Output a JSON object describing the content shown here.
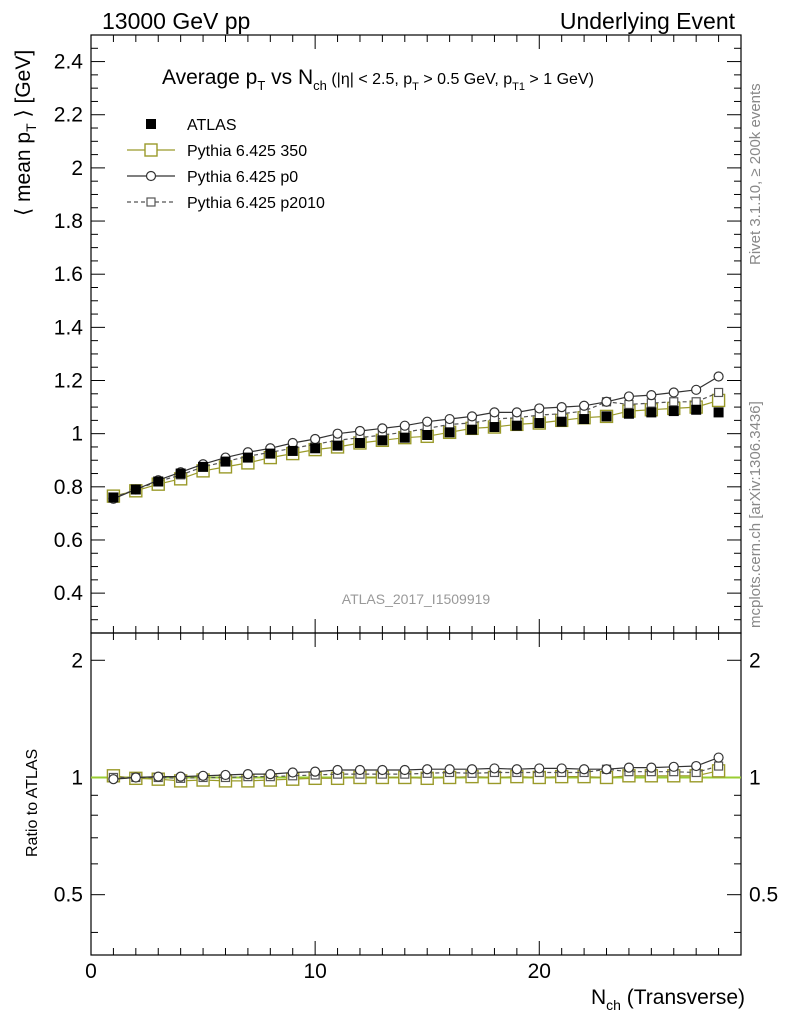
{
  "header": {
    "left": "13000 GeV pp",
    "right": "Underlying Event"
  },
  "side_labels": {
    "rivet": "Rivet 3.1.10, ≥ 200k events",
    "mcplots": "mcplots.cern.ch [arXiv:1306.3436]"
  },
  "watermark": "ATLAS_2017_I1509919",
  "chart_data": [
    {
      "type": "scatter",
      "title": "Average p_T vs N_ch (|η| < 2.5, p_T > 0.5 GeV, p_T1 > 1 GeV)",
      "ylabel": "⟨ mean p_T ⟩ [GeV]",
      "xlabel": "N_ch (Transverse)",
      "xlim": [
        0,
        29
      ],
      "ylim": [
        0.25,
        2.5
      ],
      "xticks": [
        "0",
        "10",
        "20"
      ],
      "yticks": [
        "0.4",
        "0.6",
        "0.8",
        "1",
        "1.2",
        "1.4",
        "1.6",
        "1.8",
        "2",
        "2.2",
        "2.4"
      ],
      "legend_position": "top-left",
      "x": [
        1,
        2,
        3,
        4,
        5,
        6,
        7,
        8,
        9,
        10,
        11,
        12,
        13,
        14,
        15,
        16,
        17,
        18,
        19,
        20,
        21,
        22,
        23,
        24,
        25,
        26,
        27,
        28
      ],
      "series": [
        {
          "name": "ATLAS",
          "color": "#000000",
          "marker": "filled-square",
          "values": [
            0.76,
            0.79,
            0.82,
            0.85,
            0.875,
            0.895,
            0.91,
            0.925,
            0.935,
            0.945,
            0.955,
            0.965,
            0.975,
            0.985,
            0.995,
            1.005,
            1.015,
            1.025,
            1.03,
            1.04,
            1.045,
            1.055,
            1.065,
            1.075,
            1.08,
            1.085,
            1.09,
            1.08
          ]
        },
        {
          "name": "Pythia 6.425 350",
          "color": "#9a9a2a",
          "marker": "open-square-solid",
          "values": [
            0.765,
            0.785,
            0.81,
            0.83,
            0.86,
            0.875,
            0.89,
            0.91,
            0.925,
            0.94,
            0.95,
            0.965,
            0.975,
            0.985,
            0.99,
            1.005,
            1.02,
            1.025,
            1.035,
            1.04,
            1.05,
            1.06,
            1.065,
            1.085,
            1.09,
            1.095,
            1.1,
            1.125
          ]
        },
        {
          "name": "Pythia 6.425 p0",
          "color": "#333333",
          "marker": "open-circle-solid",
          "values": [
            0.755,
            0.79,
            0.825,
            0.855,
            0.885,
            0.91,
            0.93,
            0.945,
            0.965,
            0.98,
            1.0,
            1.01,
            1.02,
            1.03,
            1.045,
            1.055,
            1.065,
            1.08,
            1.08,
            1.095,
            1.1,
            1.105,
            1.12,
            1.14,
            1.145,
            1.155,
            1.165,
            1.215
          ]
        },
        {
          "name": "Pythia 6.425 p2010",
          "color": "#555555",
          "marker": "open-square-dashed",
          "values": [
            0.76,
            0.79,
            0.82,
            0.845,
            0.875,
            0.895,
            0.915,
            0.93,
            0.945,
            0.96,
            0.975,
            0.985,
            0.995,
            1.005,
            1.02,
            1.035,
            1.04,
            1.055,
            1.06,
            1.07,
            1.075,
            1.085,
            1.12,
            1.11,
            1.115,
            1.12,
            1.12,
            1.155
          ]
        }
      ]
    },
    {
      "type": "scatter",
      "title": "",
      "ylabel": "Ratio to ATLAS",
      "xlabel": "N_ch (Transverse)",
      "xlim": [
        0,
        29
      ],
      "ylim": [
        0.35,
        2.35
      ],
      "yscale": "log",
      "yticks": [
        "0.5",
        "1",
        "2"
      ],
      "reference_line": 1,
      "x": [
        1,
        2,
        3,
        4,
        5,
        6,
        7,
        8,
        9,
        10,
        11,
        12,
        13,
        14,
        15,
        16,
        17,
        18,
        19,
        20,
        21,
        22,
        23,
        24,
        25,
        26,
        27,
        28
      ],
      "series": [
        {
          "name": "Pythia 6.425 350",
          "color": "#9a9a2a",
          "marker": "open-square-solid",
          "values": [
            1.01,
            0.995,
            0.99,
            0.98,
            0.985,
            0.98,
            0.98,
            0.985,
            0.99,
            0.995,
            0.995,
            1.0,
            1.0,
            1.0,
            0.995,
            1.0,
            1.005,
            1.0,
            1.005,
            1.0,
            1.005,
            1.005,
            1.0,
            1.01,
            1.01,
            1.01,
            1.01,
            1.04
          ]
        },
        {
          "name": "Pythia 6.425 p0",
          "color": "#333333",
          "marker": "open-circle-solid",
          "values": [
            0.99,
            1.0,
            1.005,
            1.005,
            1.01,
            1.015,
            1.02,
            1.02,
            1.03,
            1.035,
            1.045,
            1.045,
            1.045,
            1.045,
            1.05,
            1.05,
            1.05,
            1.055,
            1.05,
            1.055,
            1.055,
            1.05,
            1.05,
            1.06,
            1.06,
            1.065,
            1.07,
            1.125
          ]
        },
        {
          "name": "Pythia 6.425 p2010",
          "color": "#555555",
          "marker": "open-square-dashed",
          "values": [
            1.0,
            1.0,
            1.0,
            0.995,
            1.0,
            1.0,
            1.005,
            1.005,
            1.01,
            1.015,
            1.02,
            1.02,
            1.02,
            1.02,
            1.025,
            1.03,
            1.025,
            1.03,
            1.03,
            1.03,
            1.03,
            1.03,
            1.05,
            1.035,
            1.035,
            1.035,
            1.03,
            1.07
          ]
        }
      ]
    }
  ]
}
